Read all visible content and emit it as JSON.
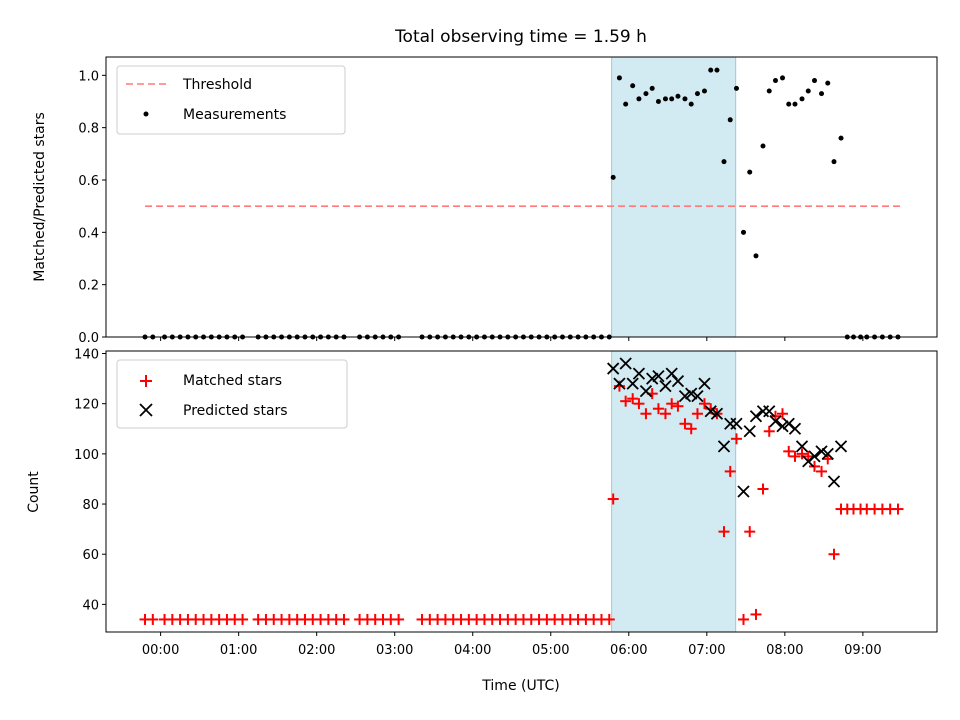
{
  "chart_data": {
    "title": "Total observing time = 1.59 h",
    "xlabel": "Time (UTC)",
    "x_unit": "hours since 00:00 UTC",
    "xlim": [
      -0.7,
      9.95
    ],
    "x_ticks": [
      0,
      1,
      2,
      3,
      4,
      5,
      6,
      7,
      8,
      9
    ],
    "x_tick_labels": [
      "00:00",
      "01:00",
      "02:00",
      "03:00",
      "04:00",
      "05:00",
      "06:00",
      "07:00",
      "08:00",
      "09:00"
    ],
    "colors": {
      "threshold": "#ff7a7a",
      "span": "#add8e6",
      "matched": "#ff0000",
      "predicted": "#000000",
      "measurement": "#000000"
    },
    "highlight_span": {
      "x0": 5.78,
      "x1": 7.37
    },
    "panels": [
      {
        "type": "scatter",
        "ylabel": "Matched/Predicted stars",
        "ylim": [
          0,
          1.07
        ],
        "y_ticks": [
          0.0,
          0.2,
          0.4,
          0.6,
          0.8,
          1.0
        ],
        "y_tick_labels": [
          "0.0",
          "0.2",
          "0.4",
          "0.6",
          "0.8",
          "1.0"
        ],
        "legend_position": "upper left",
        "threshold": {
          "name": "Threshold",
          "y": 0.5,
          "x0": -0.2,
          "x1": 9.5
        },
        "series": [
          {
            "name": "Measurements",
            "x": [
              -0.2,
              -0.1,
              0.05,
              0.15,
              0.25,
              0.35,
              0.45,
              0.55,
              0.65,
              0.75,
              0.85,
              0.95,
              1.05,
              1.25,
              1.35,
              1.45,
              1.55,
              1.65,
              1.75,
              1.85,
              1.95,
              2.05,
              2.15,
              2.25,
              2.35,
              2.55,
              2.65,
              2.75,
              2.85,
              2.95,
              3.05,
              3.35,
              3.45,
              3.55,
              3.65,
              3.75,
              3.85,
              3.95,
              4.05,
              4.15,
              4.25,
              4.35,
              4.45,
              4.55,
              4.65,
              4.75,
              4.85,
              4.95,
              5.05,
              5.15,
              5.25,
              5.35,
              5.45,
              5.55,
              5.65,
              5.75,
              5.8,
              5.88,
              5.96,
              6.05,
              6.13,
              6.22,
              6.3,
              6.38,
              6.47,
              6.55,
              6.63,
              6.72,
              6.8,
              6.88,
              6.97,
              7.05,
              7.13,
              7.22,
              7.3,
              7.38,
              7.47,
              7.55,
              7.63,
              7.72,
              7.8,
              7.88,
              7.97,
              8.05,
              8.13,
              8.22,
              8.3,
              8.38,
              8.47,
              8.55,
              8.63,
              8.72,
              8.8,
              8.88,
              8.97,
              9.05,
              9.15,
              9.25,
              9.35,
              9.45
            ],
            "y": [
              0.0,
              0.0,
              0.0,
              0.0,
              0.0,
              0.0,
              0.0,
              0.0,
              0.0,
              0.0,
              0.0,
              0.0,
              0.0,
              0.0,
              0.0,
              0.0,
              0.0,
              0.0,
              0.0,
              0.0,
              0.0,
              0.0,
              0.0,
              0.0,
              0.0,
              0.0,
              0.0,
              0.0,
              0.0,
              0.0,
              0.0,
              0.0,
              0.0,
              0.0,
              0.0,
              0.0,
              0.0,
              0.0,
              0.0,
              0.0,
              0.0,
              0.0,
              0.0,
              0.0,
              0.0,
              0.0,
              0.0,
              0.0,
              0.0,
              0.0,
              0.0,
              0.0,
              0.0,
              0.0,
              0.0,
              0.0,
              0.61,
              0.99,
              0.89,
              0.96,
              0.91,
              0.93,
              0.95,
              0.9,
              0.91,
              0.91,
              0.92,
              0.91,
              0.89,
              0.93,
              0.94,
              1.02,
              1.02,
              0.67,
              0.83,
              0.95,
              0.4,
              0.63,
              0.31,
              0.73,
              0.94,
              0.98,
              0.99,
              0.89,
              0.89,
              0.91,
              0.94,
              0.98,
              0.93,
              0.97,
              0.67,
              0.76,
              0.0,
              0.0,
              0.0,
              0.0,
              0.0,
              0.0,
              0.0,
              0.0
            ]
          }
        ]
      },
      {
        "type": "scatter",
        "ylabel": "Count",
        "ylim": [
          29,
          141
        ],
        "y_ticks": [
          40,
          60,
          80,
          100,
          120,
          140
        ],
        "y_tick_labels": [
          "40",
          "60",
          "80",
          "100",
          "120",
          "140"
        ],
        "legend_position": "upper left",
        "series": [
          {
            "name": "Matched stars",
            "x": [
              -0.2,
              -0.1,
              0.05,
              0.15,
              0.25,
              0.35,
              0.45,
              0.55,
              0.65,
              0.75,
              0.85,
              0.95,
              1.05,
              1.25,
              1.35,
              1.45,
              1.55,
              1.65,
              1.75,
              1.85,
              1.95,
              2.05,
              2.15,
              2.25,
              2.35,
              2.55,
              2.65,
              2.75,
              2.85,
              2.95,
              3.05,
              3.35,
              3.45,
              3.55,
              3.65,
              3.75,
              3.85,
              3.95,
              4.05,
              4.15,
              4.25,
              4.35,
              4.45,
              4.55,
              4.65,
              4.75,
              4.85,
              4.95,
              5.05,
              5.15,
              5.25,
              5.35,
              5.45,
              5.55,
              5.65,
              5.75,
              5.8,
              5.88,
              5.96,
              6.05,
              6.13,
              6.22,
              6.3,
              6.38,
              6.47,
              6.55,
              6.63,
              6.72,
              6.8,
              6.88,
              6.97,
              7.05,
              7.13,
              7.22,
              7.3,
              7.38,
              7.47,
              7.55,
              7.63,
              7.72,
              7.8,
              7.88,
              7.97,
              8.05,
              8.13,
              8.22,
              8.3,
              8.38,
              8.47,
              8.55,
              8.63,
              8.72,
              8.8,
              8.88,
              8.97,
              9.05,
              9.15,
              9.25,
              9.35,
              9.45
            ],
            "y": [
              34,
              34,
              34,
              34,
              34,
              34,
              34,
              34,
              34,
              34,
              34,
              34,
              34,
              34,
              34,
              34,
              34,
              34,
              34,
              34,
              34,
              34,
              34,
              34,
              34,
              34,
              34,
              34,
              34,
              34,
              34,
              34,
              34,
              34,
              34,
              34,
              34,
              34,
              34,
              34,
              34,
              34,
              34,
              34,
              34,
              34,
              34,
              34,
              34,
              34,
              34,
              34,
              34,
              34,
              34,
              34,
              82,
              127,
              121,
              122,
              120,
              116,
              124,
              118,
              116,
              120,
              119,
              112,
              110,
              116,
              120,
              118,
              116,
              69,
              93,
              106,
              34,
              69,
              36,
              86,
              109,
              115,
              116,
              101,
              99,
              100,
              99,
              95,
              93,
              98,
              60,
              78,
              78,
              78,
              78,
              78,
              78,
              78,
              78,
              78
            ]
          },
          {
            "name": "Predicted stars",
            "x": [
              5.8,
              5.88,
              5.96,
              6.05,
              6.13,
              6.22,
              6.3,
              6.38,
              6.47,
              6.55,
              6.63,
              6.72,
              6.8,
              6.88,
              6.97,
              7.05,
              7.13,
              7.22,
              7.3,
              7.38,
              7.47,
              7.55,
              7.63,
              7.72,
              7.8,
              7.88,
              7.97,
              8.05,
              8.13,
              8.22,
              8.3,
              8.38,
              8.47,
              8.55,
              8.63,
              8.72
            ],
            "y": [
              134,
              128,
              136,
              128,
              132,
              125,
              130,
              131,
              127,
              132,
              129,
              123,
              124,
              123,
              128,
              117,
              116,
              103,
              112,
              112,
              85,
              109,
              115,
              117,
              117,
              113,
              111,
              112,
              110,
              103,
              97,
              99,
              101,
              100,
              89,
              103
            ]
          }
        ]
      }
    ]
  }
}
